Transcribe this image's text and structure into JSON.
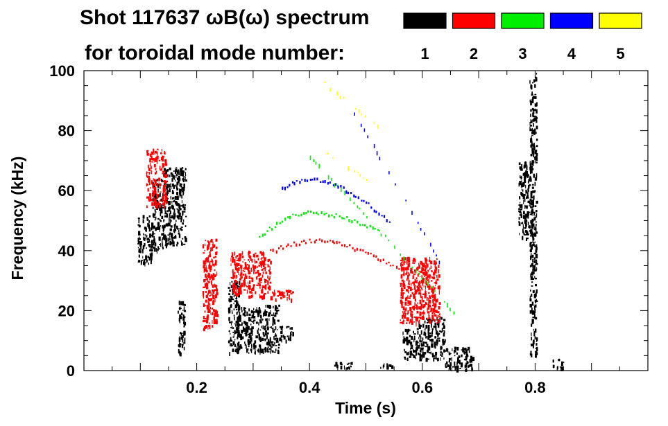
{
  "chart_data": {
    "type": "scatter",
    "title_line1": "Shot 117637 ωB(ω) spectrum",
    "title_line2": "for toroidal mode number:",
    "xlabel": "Time (s)",
    "ylabel": "Frequency (kHz)",
    "xlim": [
      0.0,
      1.0
    ],
    "ylim": [
      0,
      100
    ],
    "xticks": [
      {
        "value": 0.2,
        "label": "0.2"
      },
      {
        "value": 0.4,
        "label": "0.4"
      },
      {
        "value": 0.6,
        "label": "0.6"
      },
      {
        "value": 0.8,
        "label": "0.8"
      }
    ],
    "yticks": [
      {
        "value": 0,
        "label": "0"
      },
      {
        "value": 20,
        "label": "20"
      },
      {
        "value": 40,
        "label": "40"
      },
      {
        "value": 60,
        "label": "60"
      },
      {
        "value": 80,
        "label": "80"
      },
      {
        "value": 100,
        "label": "100"
      }
    ],
    "legend": [
      {
        "mode": "1",
        "color": "#000000"
      },
      {
        "mode": "2",
        "color": "#ff0000"
      },
      {
        "mode": "3",
        "color": "#00ee00"
      },
      {
        "mode": "4",
        "color": "#0000ff"
      },
      {
        "mode": "5",
        "color": "#ffff00"
      }
    ],
    "series": [
      {
        "name": "n=1",
        "color": "#000000",
        "features": [
          {
            "shape": "band",
            "t0": 0.095,
            "t1": 0.12,
            "f0": 36,
            "f1": 52
          },
          {
            "shape": "band",
            "t0": 0.12,
            "t1": 0.14,
            "f0": 40,
            "f1": 64
          },
          {
            "shape": "band",
            "t0": 0.14,
            "t1": 0.18,
            "f0": 42,
            "f1": 68
          },
          {
            "shape": "band",
            "t0": 0.165,
            "t1": 0.178,
            "f0": 6,
            "f1": 24
          },
          {
            "shape": "band",
            "t0": 0.255,
            "t1": 0.275,
            "f0": 6,
            "f1": 30
          },
          {
            "shape": "band",
            "t0": 0.27,
            "t1": 0.345,
            "f0": 6,
            "f1": 22
          },
          {
            "shape": "band",
            "t0": 0.345,
            "t1": 0.37,
            "f0": 10,
            "f1": 15
          },
          {
            "shape": "band",
            "t0": 0.44,
            "t1": 0.48,
            "f0": 1,
            "f1": 3
          },
          {
            "shape": "band",
            "t0": 0.52,
            "t1": 0.545,
            "f0": 1,
            "f1": 2.5
          },
          {
            "shape": "band",
            "t0": 0.565,
            "t1": 0.59,
            "f0": 4,
            "f1": 14
          },
          {
            "shape": "band",
            "t0": 0.59,
            "t1": 0.64,
            "f0": 4,
            "f1": 18
          },
          {
            "shape": "band",
            "t0": 0.64,
            "t1": 0.69,
            "f0": 0.5,
            "f1": 8
          },
          {
            "shape": "band",
            "t0": 0.77,
            "t1": 0.795,
            "f0": 44,
            "f1": 70
          },
          {
            "shape": "band",
            "t0": 0.79,
            "t1": 0.802,
            "f0": 5,
            "f1": 100
          },
          {
            "shape": "band",
            "t0": 0.83,
            "t1": 0.85,
            "f0": 1,
            "f1": 4
          }
        ]
      },
      {
        "name": "n=2",
        "color": "#ff0000",
        "features": [
          {
            "shape": "band",
            "t0": 0.11,
            "t1": 0.145,
            "f0": 55,
            "f1": 74
          },
          {
            "shape": "band",
            "t0": 0.21,
            "t1": 0.235,
            "f0": 14,
            "f1": 44
          },
          {
            "shape": "band",
            "t0": 0.26,
            "t1": 0.33,
            "f0": 25,
            "f1": 40
          },
          {
            "shape": "band",
            "t0": 0.33,
            "t1": 0.37,
            "f0": 24,
            "f1": 27
          },
          {
            "shape": "arc",
            "t0": 0.33,
            "t1": 0.575,
            "f_start": 40,
            "f_peak": 43.5,
            "t_peak": 0.41,
            "f_end": 32
          },
          {
            "shape": "band",
            "t0": 0.56,
            "t1": 0.63,
            "f0": 16,
            "f1": 38
          }
        ]
      },
      {
        "name": "n=3",
        "color": "#00ee00",
        "features": [
          {
            "shape": "arc",
            "t0": 0.31,
            "t1": 0.52,
            "f_start": 45,
            "f_peak": 53,
            "t_peak": 0.4,
            "f_end": 47
          },
          {
            "shape": "line",
            "t0": 0.4,
            "t1": 0.66,
            "f0": 72,
            "f1": 19
          }
        ]
      },
      {
        "name": "n=4",
        "color": "#0000ff",
        "features": [
          {
            "shape": "arc",
            "t0": 0.35,
            "t1": 0.54,
            "f_start": 61,
            "f_peak": 64,
            "t_peak": 0.4,
            "f_end": 50
          },
          {
            "shape": "line",
            "t0": 0.48,
            "t1": 0.63,
            "f0": 86,
            "f1": 37
          }
        ]
      },
      {
        "name": "n=5",
        "color": "#ffff00",
        "features": [
          {
            "shape": "line",
            "t0": 0.42,
            "t1": 0.52,
            "f0": 97,
            "f1": 82
          },
          {
            "shape": "line",
            "t0": 0.43,
            "t1": 0.5,
            "f0": 73,
            "f1": 64
          }
        ]
      }
    ]
  }
}
